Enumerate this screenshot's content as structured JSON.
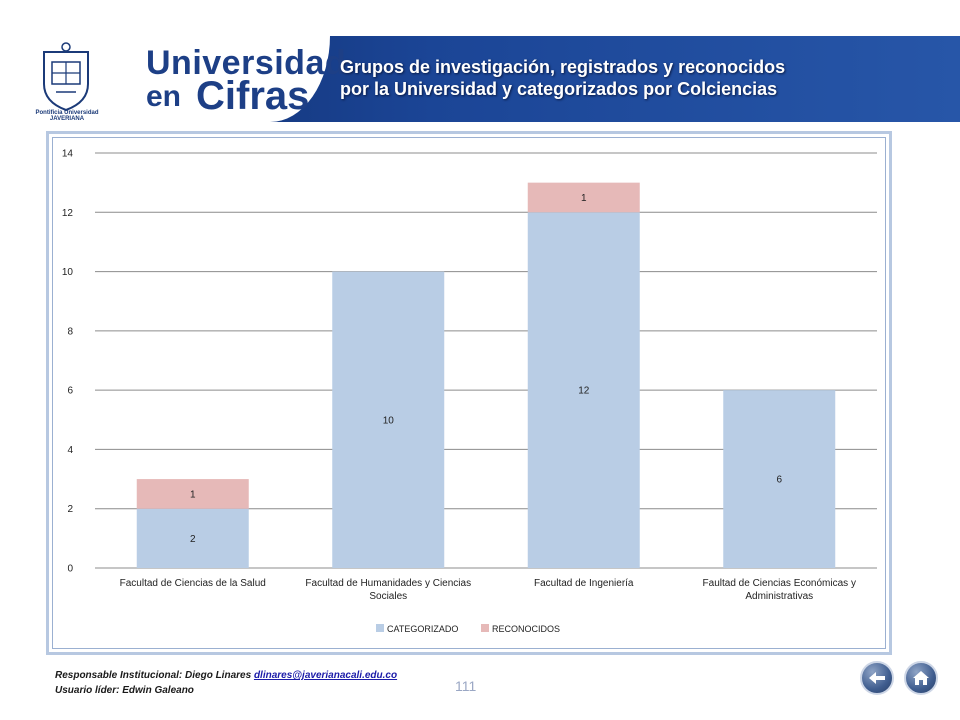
{
  "header": {
    "seal_caption_line1": "Pontificia Universidad",
    "seal_caption_line2": "JAVERIANA",
    "brand_line1": "Universidad",
    "brand_line2_small": "en",
    "brand_line2_large": "Cifras",
    "title_line1": "Grupos de investigación, registrados y reconocidos",
    "title_line2": "por la Universidad y categorizados  por Colciencias"
  },
  "chart_data": {
    "type": "bar",
    "stacked": true,
    "categories": [
      "Facultad de Ciencias de la Salud",
      "Facultad de Humanidades y Ciencias Sociales",
      "Facultad de Ingeniería",
      "Faultad de Ciencias Económicas y Administrativas"
    ],
    "category_lines": [
      [
        "Facultad de Ciencias de la Salud"
      ],
      [
        "Facultad de Humanidades y Ciencias",
        "Sociales"
      ],
      [
        "Facultad de Ingeniería"
      ],
      [
        "Faultad de Ciencias Económicas y",
        "Administrativas"
      ]
    ],
    "series": [
      {
        "name": "CATEGORIZADO",
        "values": [
          2,
          10,
          12,
          6
        ],
        "color": "#b9cde5"
      },
      {
        "name": "RECONOCIDOS",
        "values": [
          1,
          0,
          1,
          0
        ],
        "color": "#e6b9b8"
      }
    ],
    "data_labels": [
      [
        "2",
        "10",
        "12",
        "6"
      ],
      [
        "1",
        "",
        "1",
        ""
      ]
    ],
    "ylim": [
      0,
      14
    ],
    "yticks": [
      0,
      2,
      4,
      6,
      8,
      10,
      12,
      14
    ],
    "grid": true,
    "legend": "bottom",
    "title": "",
    "xlabel": "",
    "ylabel": ""
  },
  "footer": {
    "responsible_prefix": "Responsable Institucional: Diego Linares ",
    "responsible_email": "dlinares@javerianacali.edu.co",
    "leader": "Usuario líder: Edwin Galeano",
    "page_number": "111"
  },
  "nav": {
    "back_icon": "back-arrow-icon",
    "home_icon": "home-icon"
  }
}
